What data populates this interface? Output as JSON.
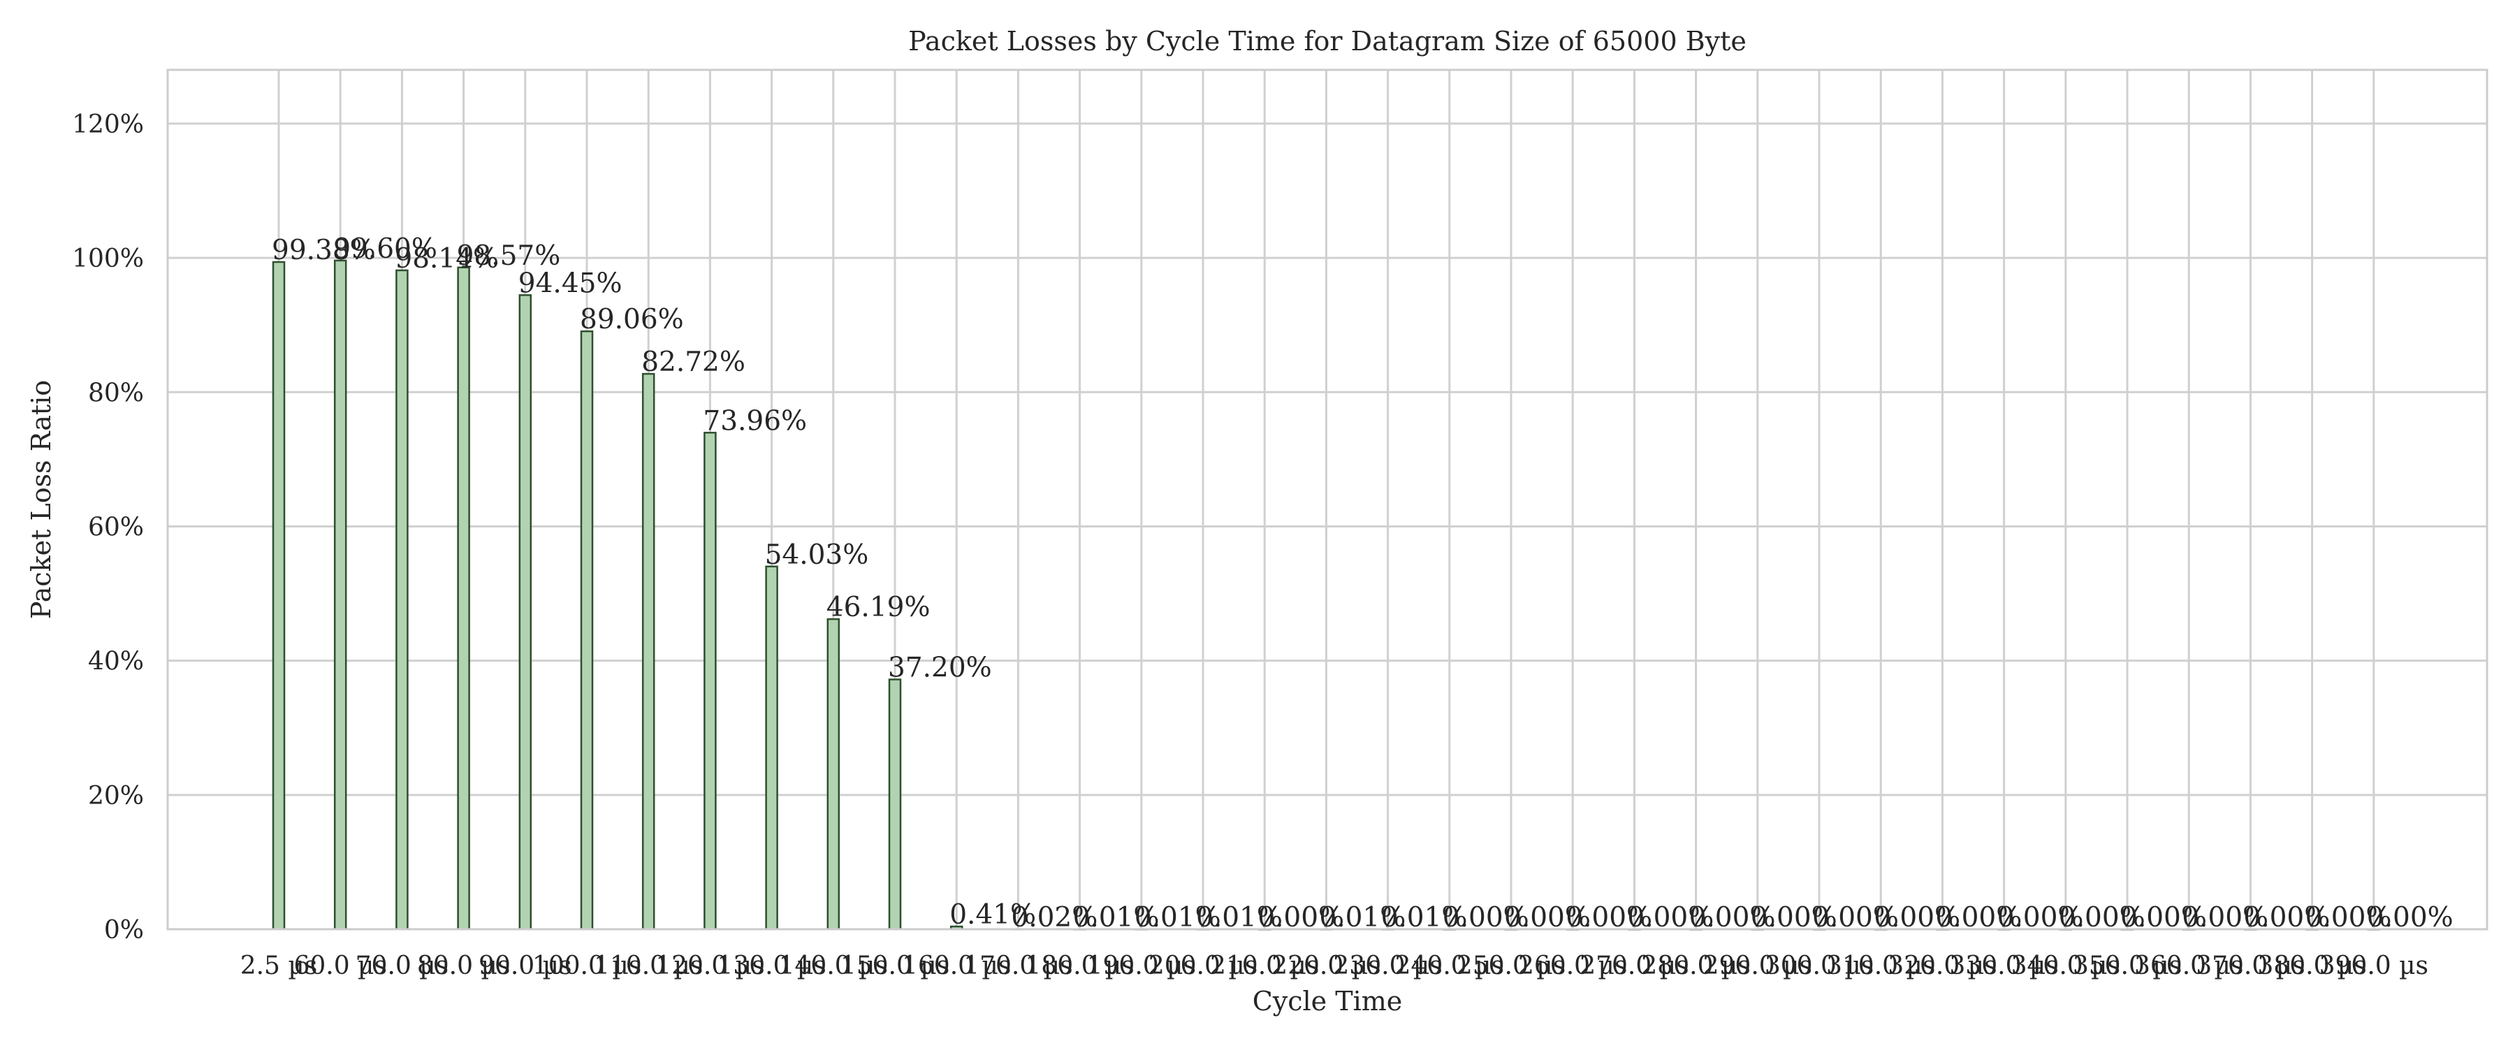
{
  "chart_data": {
    "type": "bar",
    "title": "Packet Losses by Cycle Time for Datagram Size of 65000 Byte",
    "xlabel": "Cycle Time",
    "ylabel": "Packet Loss Ratio",
    "ylim": [
      0,
      128
    ],
    "yticks": [
      0,
      20,
      40,
      60,
      80,
      100,
      120
    ],
    "ytick_labels": [
      "0%",
      "20%",
      "40%",
      "60%",
      "80%",
      "100%",
      "120%"
    ],
    "grid": true,
    "categories": [
      "2.5 µs",
      "60.0 µs",
      "70.0 µs",
      "80.0 µs",
      "90.0 µs",
      "100.0 µs",
      "110.0 µs",
      "120.0 µs",
      "130.0 µs",
      "140.0 µs",
      "150.0 µs",
      "160.0 µs",
      "170.0 µs",
      "180.0 µs",
      "190.0 µs",
      "200.0 µs",
      "210.0 µs",
      "220.0 µs",
      "230.0 µs",
      "240.0 µs",
      "250.0 µs",
      "260.0 µs",
      "270.0 µs",
      "280.0 µs",
      "290.0 µs",
      "300.0 µs",
      "310.0 µs",
      "320.0 µs",
      "330.0 µs",
      "340.0 µs",
      "350.0 µs",
      "360.0 µs",
      "370.0 µs",
      "380.0 µs",
      "390.0 µs"
    ],
    "values": [
      99.38,
      99.6,
      98.14,
      98.57,
      94.45,
      89.06,
      82.72,
      73.96,
      54.03,
      46.19,
      37.2,
      0.41,
      0.02,
      0.01,
      0.01,
      0.01,
      0.0,
      0.01,
      0.01,
      0.0,
      0.0,
      0.0,
      0.0,
      0.0,
      0.0,
      0.0,
      0.0,
      0.0,
      0.0,
      0.0,
      0.0,
      0.0,
      0.0,
      0.0,
      0.0
    ],
    "data_labels": [
      "99.38%",
      "99.60%",
      "98.14%",
      "98.57%",
      "94.45%",
      "89.06%",
      "82.72%",
      "73.96%",
      "54.03%",
      "46.19%",
      "37.20%",
      "0.41%",
      "0.02%",
      "0.01%",
      "0.01%",
      "0.01%",
      "0.00%",
      "0.01%",
      "0.01%",
      "0.00%",
      "0.00%",
      "0.00%",
      "0.00%",
      "0.00%",
      "0.00%",
      "0.00%",
      "0.00%",
      "0.00%",
      "0.00%",
      "0.00%",
      "0.00%",
      "0.00%",
      "0.00%",
      "0.00%",
      "0.00%"
    ],
    "colors": {
      "bar_fill": "#b2d3b2",
      "bar_edge": "#2f4f2f",
      "grid": "#d0d0d0",
      "frame": "#cccccc",
      "text": "#262626"
    }
  }
}
